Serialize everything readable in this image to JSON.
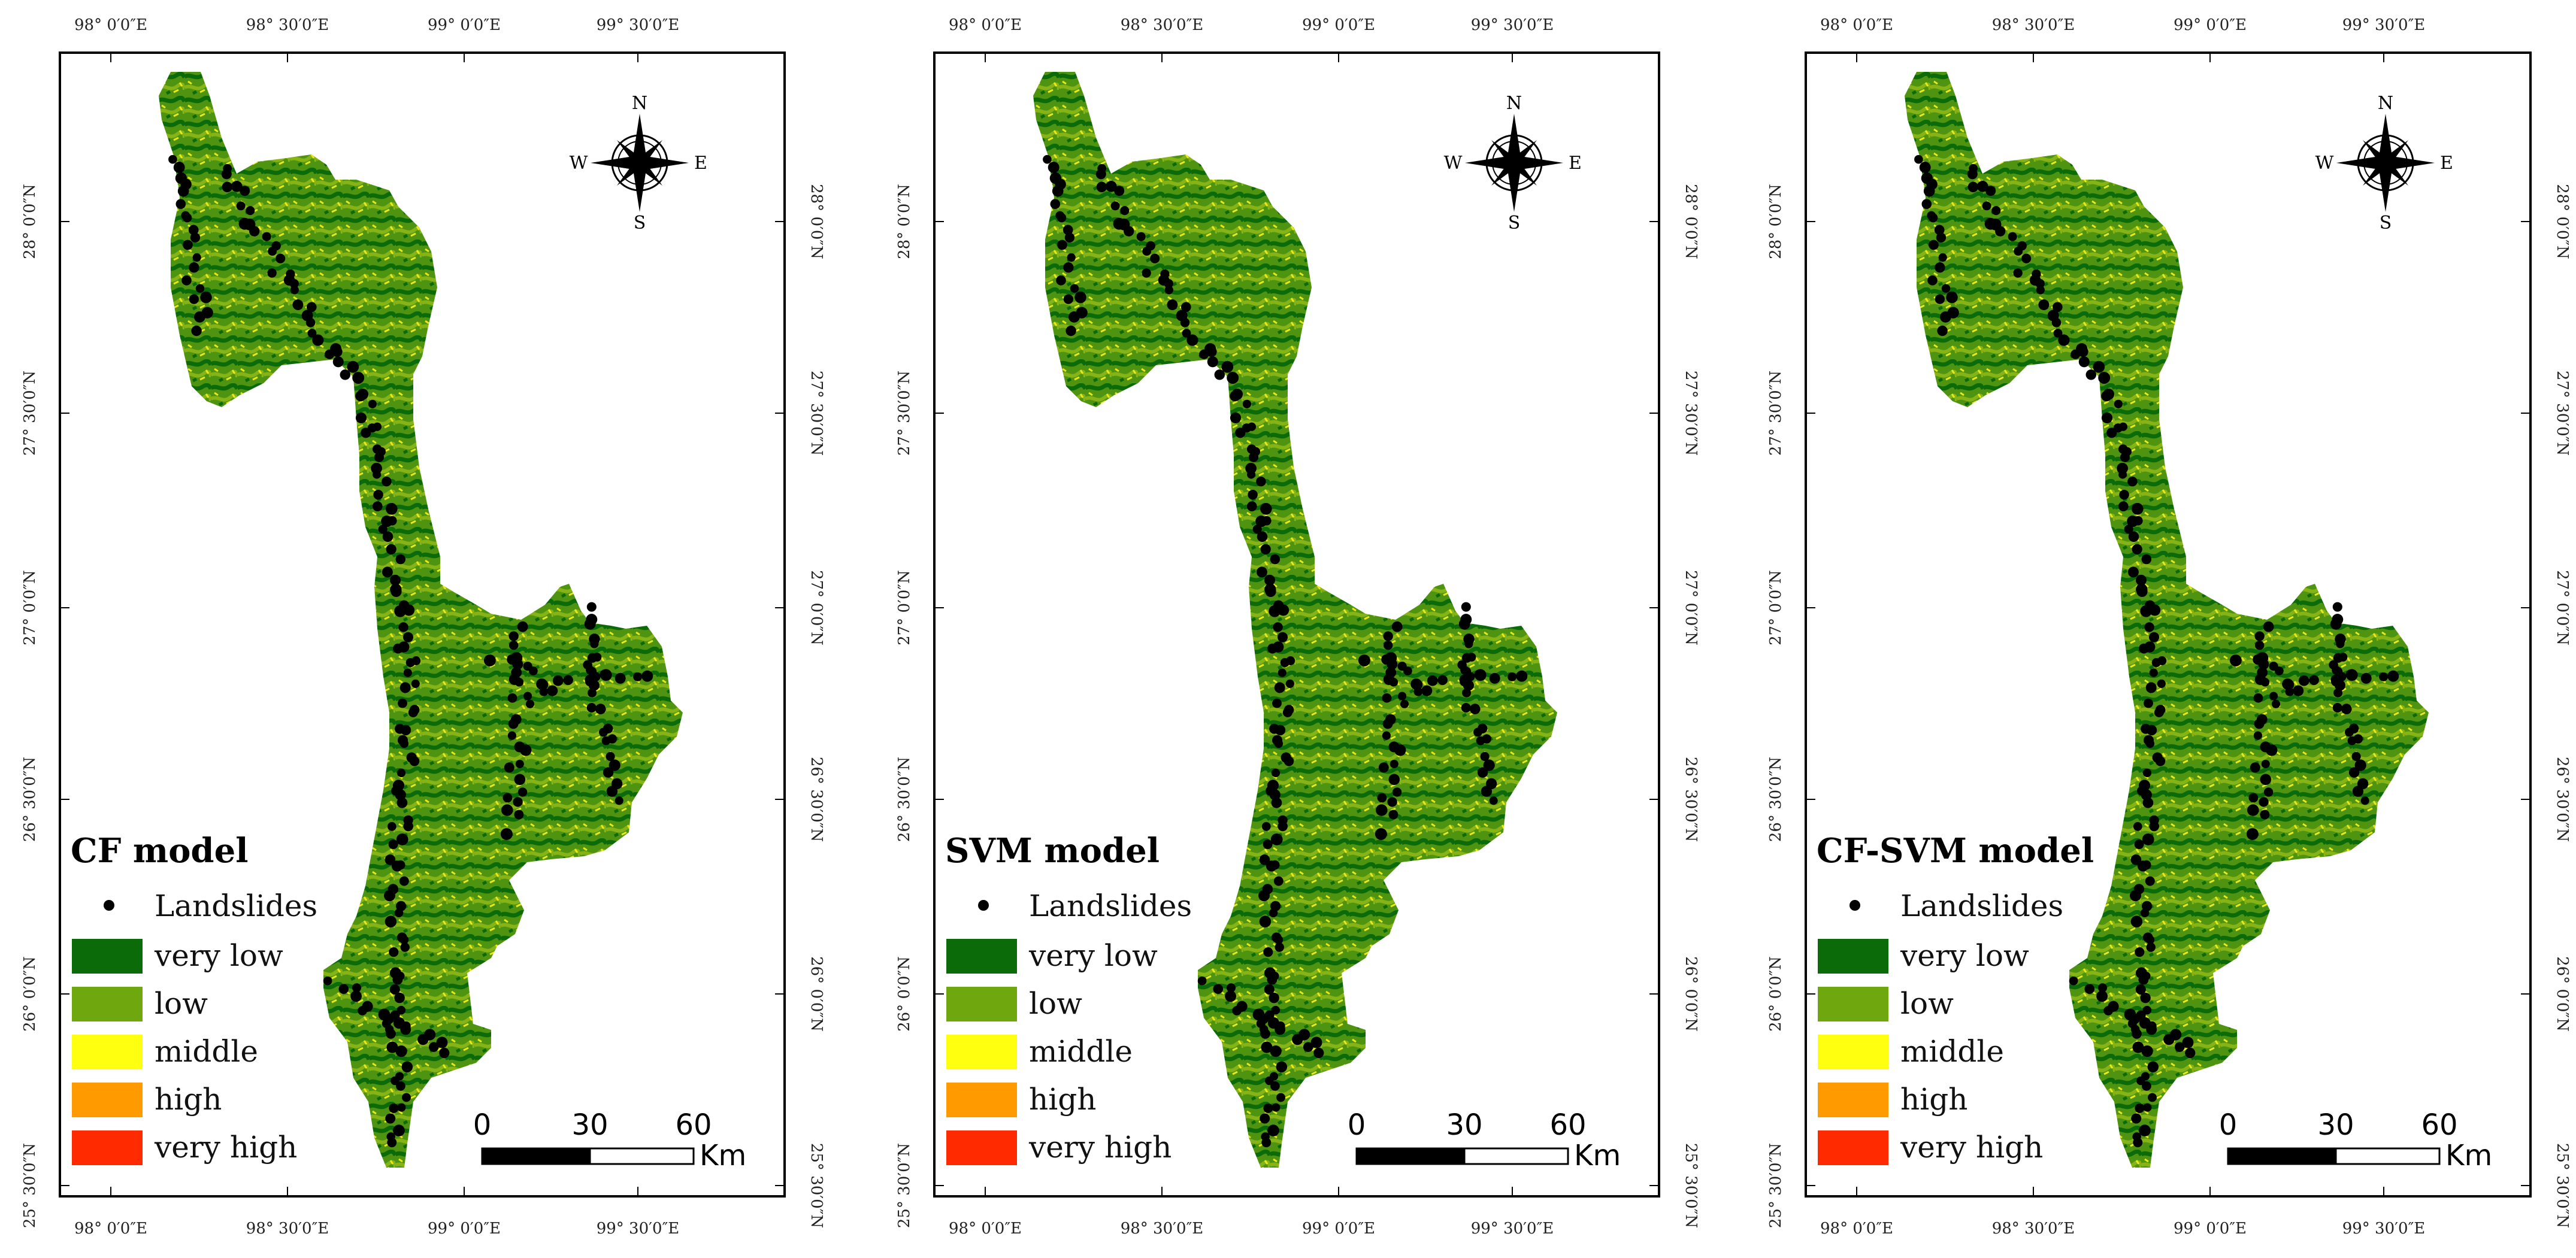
{
  "graticule": {
    "lon_labels": [
      "98° 0′0″E",
      "98° 30′0″E",
      "99° 0′0″E",
      "99° 30′0″E"
    ],
    "lat_labels": [
      "28° 0′0″N",
      "27° 30′0″N",
      "27° 0′0″N",
      "26° 30′0″N",
      "26° 0′0″N",
      "25° 30′0″N"
    ]
  },
  "compass": {
    "n": "N",
    "s": "S",
    "e": "E",
    "w": "W"
  },
  "legend": {
    "landslides": "Landslides",
    "classes": [
      {
        "label": "very low",
        "color": "#0a6b08"
      },
      {
        "label": "low",
        "color": "#6fa80e"
      },
      {
        "label": "middle",
        "color": "#ffff10"
      },
      {
        "label": "high",
        "color": "#ff9a00"
      },
      {
        "label": "very high",
        "color": "#ff2a00"
      }
    ]
  },
  "scale_bar": {
    "ticks": [
      "0",
      "30",
      "60"
    ],
    "unit": "Km"
  },
  "panels": [
    {
      "title": "CF model"
    },
    {
      "title": "SVM model"
    },
    {
      "title": "CF-SVM model"
    }
  ]
}
